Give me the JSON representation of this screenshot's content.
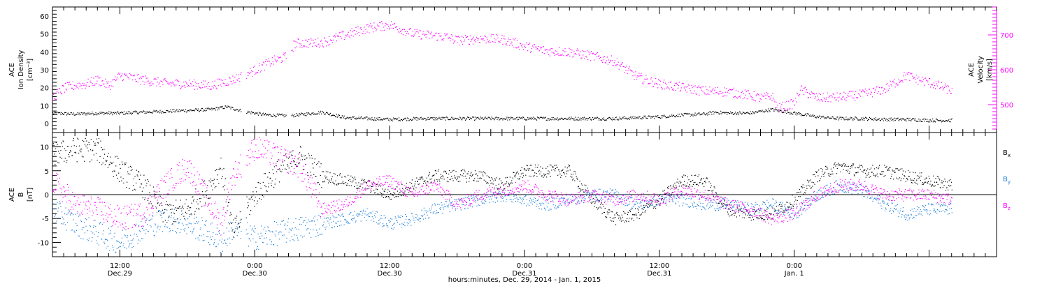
{
  "colors": {
    "black": "#000000",
    "magenta": "#ff00ff",
    "blue": "#1e7fd8"
  },
  "chart_data": [
    {
      "type": "scatter",
      "panel": "top",
      "ylabel_left": [
        "ACE",
        "Ion Density",
        "[cm⁻³]"
      ],
      "ylabel_right": [
        "ACE",
        "Velocity",
        "[km/s]"
      ],
      "ylim_left": [
        -5,
        65
      ],
      "yticks_left": [
        0,
        10,
        20,
        30,
        40,
        50,
        60
      ],
      "ylim_right": [
        420,
        780
      ],
      "yticks_right": [
        500,
        600,
        700
      ],
      "xlim_hours": [
        0,
        84
      ],
      "series": [
        {
          "axis": "left",
          "color": "#000000",
          "x": [
            0,
            2,
            4,
            6,
            8,
            10,
            12,
            14,
            15.5,
            17,
            19,
            21,
            24,
            26,
            28,
            30,
            33,
            36,
            39,
            42,
            45,
            48,
            50,
            52,
            54,
            56,
            58,
            59,
            60,
            62,
            64,
            66,
            68,
            70,
            72,
            74,
            76,
            78,
            80
          ],
          "y": [
            6,
            5.5,
            6,
            6,
            6.5,
            7,
            7.5,
            8,
            9.5,
            7,
            5,
            4.5,
            6.5,
            3.5,
            3,
            2.5,
            3,
            3,
            3,
            3,
            3,
            3,
            3,
            3.5,
            4,
            5,
            5.5,
            6.5,
            6,
            6,
            8,
            6,
            4,
            3,
            3,
            2.5,
            2.5,
            2,
            2
          ]
        },
        {
          "axis": "right",
          "color": "#ff00ff",
          "x": [
            0,
            1,
            2,
            3,
            4,
            5,
            6,
            7,
            8,
            10,
            12,
            14,
            16,
            18,
            19.5,
            21,
            21.5,
            24,
            26,
            28,
            30,
            32,
            34,
            35,
            36,
            38,
            40,
            42,
            44,
            46,
            48,
            50,
            52,
            54,
            56,
            58,
            60,
            62,
            63,
            64,
            64.5,
            66,
            66.5,
            68,
            70,
            72,
            74,
            76,
            77,
            78,
            80
          ],
          "y": [
            520,
            548,
            556,
            560,
            572,
            555,
            585,
            578,
            572,
            562,
            560,
            555,
            572,
            600,
            625,
            640,
            676,
            680,
            700,
            720,
            730,
            705,
            698,
            695,
            685,
            690,
            688,
            668,
            655,
            652,
            640,
            625,
            580,
            560,
            550,
            540,
            538,
            528,
            520,
            525,
            490,
            505,
            545,
            520,
            522,
            530,
            545,
            585,
            572,
            565,
            540
          ]
        }
      ]
    },
    {
      "type": "scatter",
      "panel": "bottom",
      "ylabel_left": [
        "ACE",
        "B",
        "[nT]"
      ],
      "ylim": [
        -13,
        13
      ],
      "yticks": [
        -10,
        -5,
        0,
        5,
        10
      ],
      "zero_line": true,
      "xlim_hours": [
        0,
        84
      ],
      "legend_position": "right",
      "legend": [
        {
          "main": "B",
          "sub": "x",
          "color": "#000000"
        },
        {
          "main": "B",
          "sub": "y",
          "color": "#1e7fd8"
        },
        {
          "main": "B",
          "sub": "z",
          "color": "#ff00ff"
        }
      ],
      "series": [
        {
          "name": "Bx",
          "color": "#000000",
          "x": [
            0,
            2,
            4,
            6,
            8,
            10,
            12,
            14,
            15,
            16,
            18,
            20,
            22,
            24,
            26,
            28,
            30,
            32,
            34,
            36,
            38,
            40,
            42,
            44,
            46,
            48,
            50,
            52,
            54,
            56,
            58,
            60,
            62,
            64,
            66,
            68,
            70,
            72,
            74,
            76,
            78,
            80
          ],
          "y": [
            8.5,
            9.5,
            9.5,
            5,
            2,
            -4,
            -3,
            2,
            6,
            -8,
            0,
            5,
            8,
            4,
            3,
            2,
            0,
            2,
            4,
            4,
            4,
            2,
            5,
            5,
            5,
            -1,
            -5,
            -4,
            -1,
            3,
            3,
            -3,
            -4,
            -4,
            -1,
            4,
            6,
            5,
            5,
            4,
            3,
            2
          ]
        },
        {
          "name": "By",
          "color": "#1e7fd8",
          "x": [
            0,
            2,
            4,
            6,
            8,
            10,
            12,
            14,
            15,
            16,
            18,
            20,
            22,
            24,
            26,
            28,
            30,
            32,
            34,
            36,
            38,
            40,
            42,
            44,
            46,
            48,
            50,
            52,
            54,
            56,
            58,
            60,
            62,
            64,
            66,
            68,
            70,
            72,
            74,
            76,
            78,
            80
          ],
          "y": [
            -3,
            -6,
            -8,
            -10,
            -7,
            -5,
            -6,
            -8,
            -10,
            -7,
            -9,
            -8,
            -7,
            -6,
            -5,
            -4,
            -6,
            -5,
            -3,
            -2,
            -1,
            0,
            -1,
            -2,
            -1,
            0,
            0,
            -2,
            -1,
            -1,
            -2,
            -2,
            -3,
            -2,
            -4,
            0,
            2,
            1,
            -2,
            -4,
            -3,
            -3
          ]
        },
        {
          "name": "Bz",
          "color": "#ff00ff",
          "x": [
            0,
            2,
            4,
            6,
            8,
            10,
            12,
            14,
            15,
            16,
            18,
            20,
            22,
            24,
            26,
            28,
            30,
            32,
            34,
            36,
            38,
            40,
            42,
            44,
            46,
            48,
            50,
            52,
            54,
            56,
            58,
            60,
            62,
            64,
            66,
            68,
            70,
            72,
            74,
            76,
            78,
            80
          ],
          "y": [
            3,
            -2,
            -3,
            -5,
            -4,
            2,
            6,
            -2,
            -6,
            4,
            10,
            8,
            6,
            -3,
            -2,
            2,
            3,
            0,
            2,
            -2,
            0,
            1,
            2,
            0,
            -1,
            0,
            -1,
            0,
            -1,
            1,
            0,
            -2,
            -3,
            -5,
            -4,
            0,
            2,
            2,
            0,
            0,
            0,
            -1
          ]
        }
      ]
    }
  ],
  "x_axis": {
    "ticks": [
      {
        "hour": 6,
        "time": "12:00",
        "date": "Dec.29"
      },
      {
        "hour": 18,
        "time": "0:00",
        "date": "Dec.30"
      },
      {
        "hour": 30,
        "time": "12:00",
        "date": "Dec.30"
      },
      {
        "hour": 42,
        "time": "0:00",
        "date": "Dec.31"
      },
      {
        "hour": 54,
        "time": "12:00",
        "date": "Dec.31"
      },
      {
        "hour": 66,
        "time": "0:00",
        "date": "Jan. 1"
      }
    ],
    "xlabel": "hours:minutes, Dec. 29, 2014 - Jan. 1, 2015"
  }
}
